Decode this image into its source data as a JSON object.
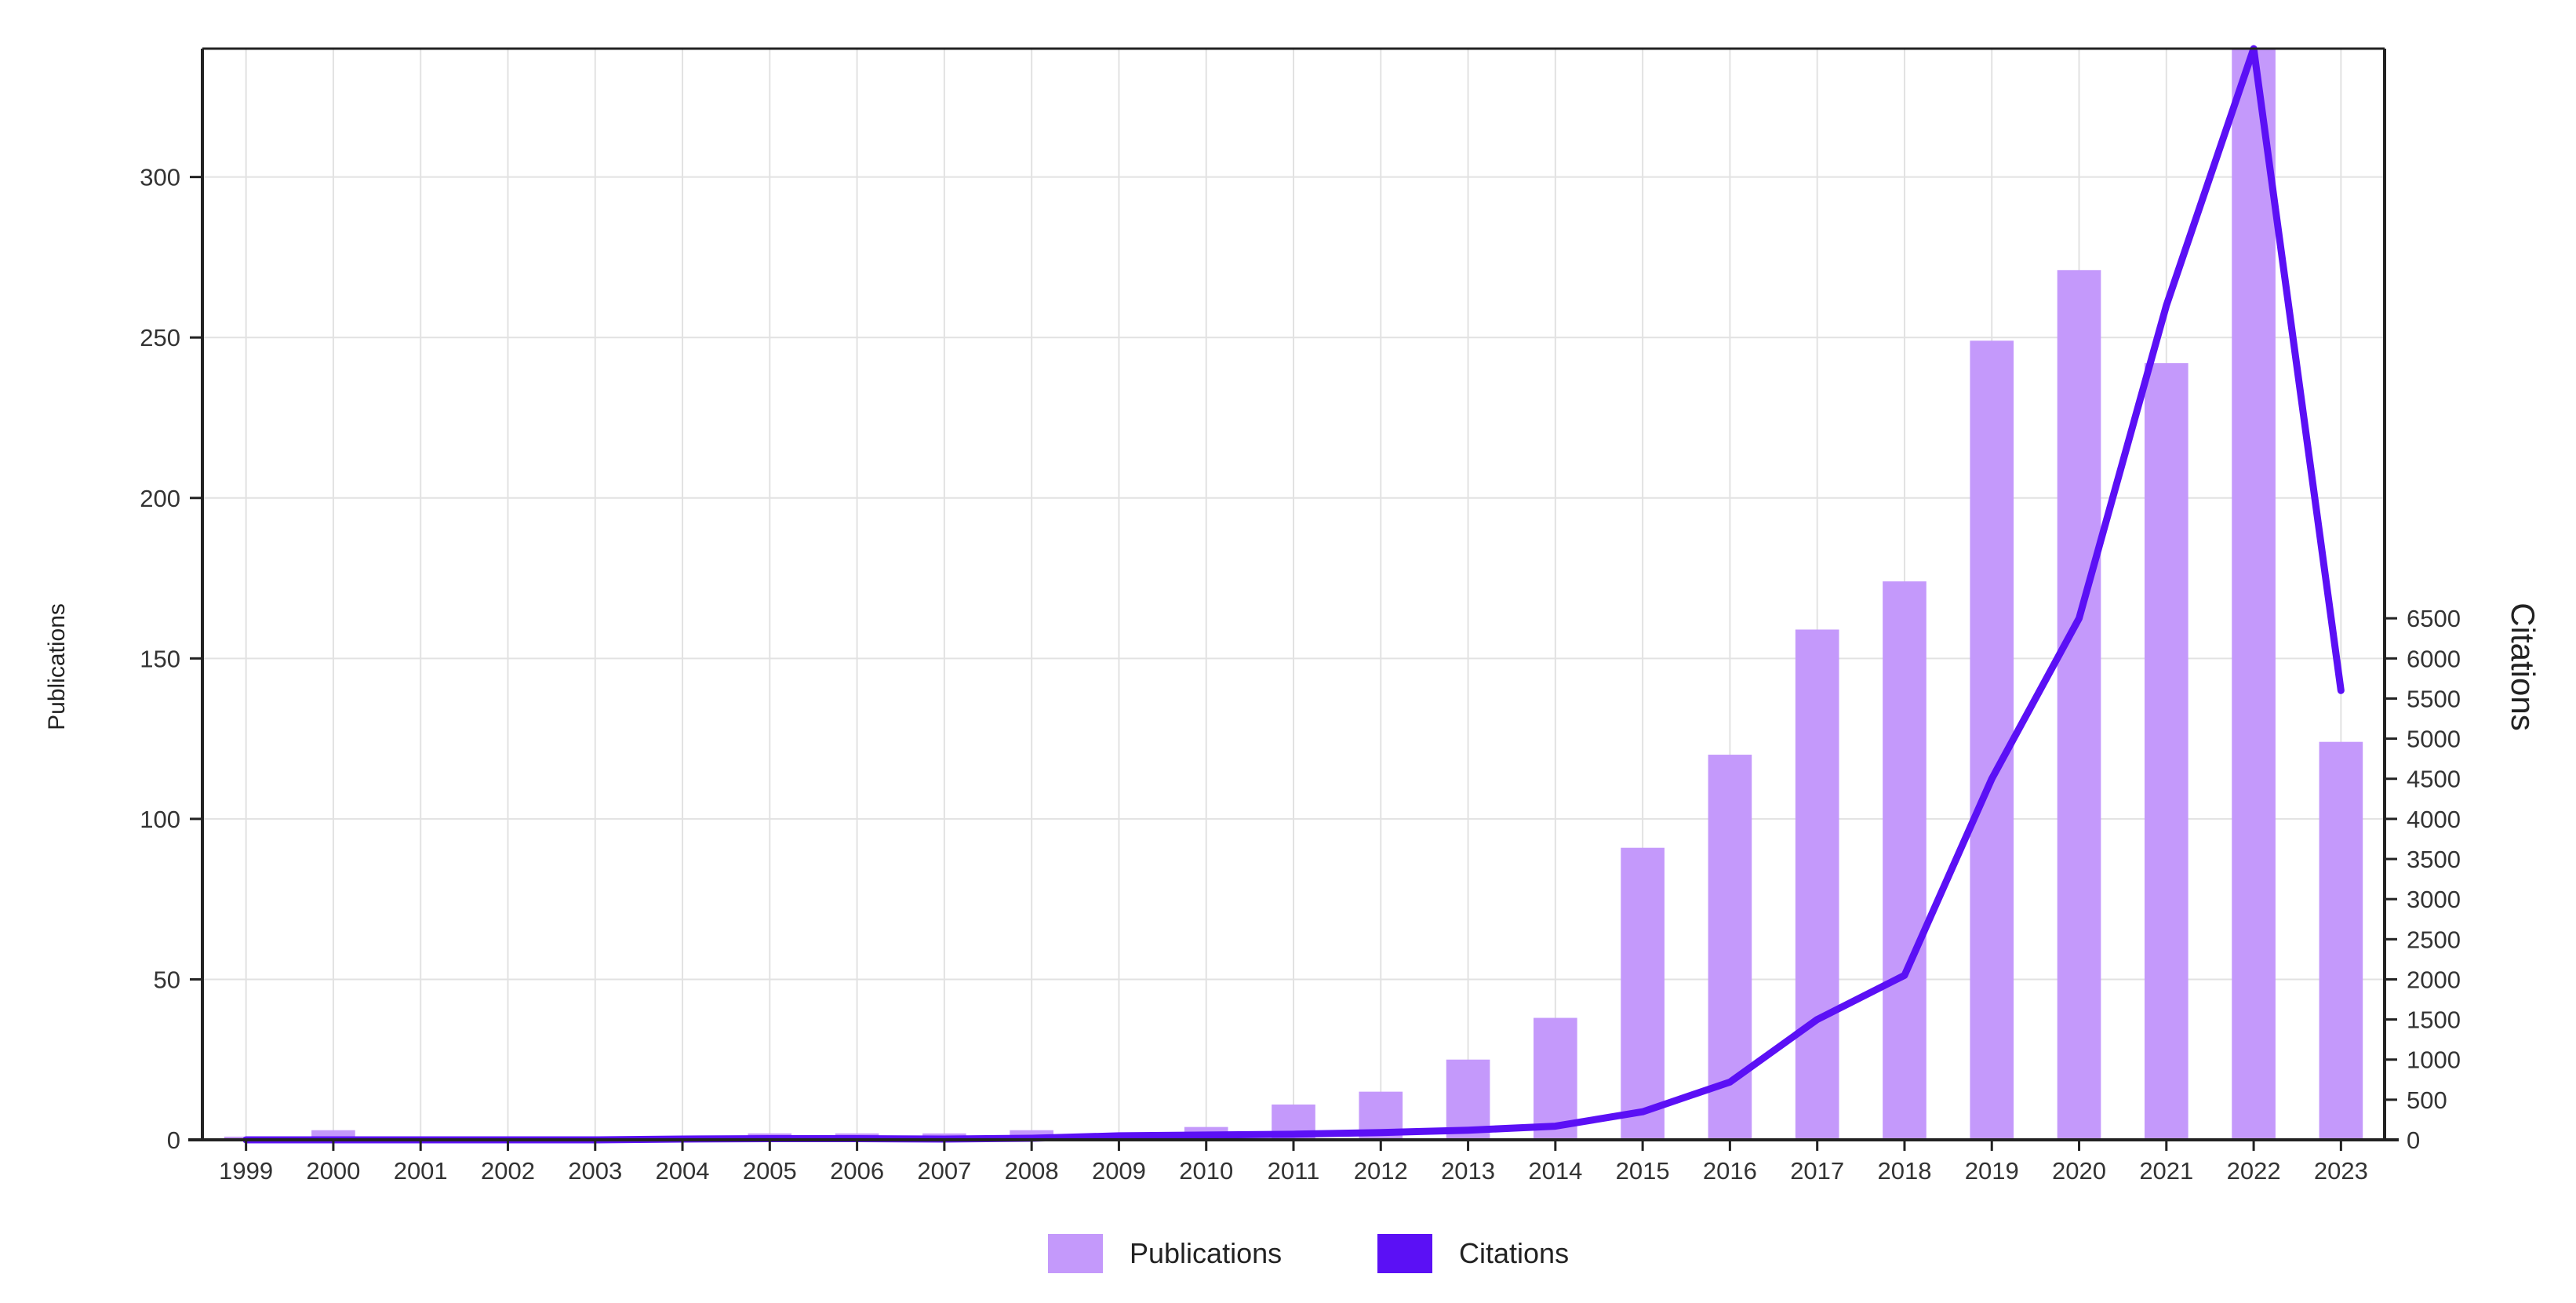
{
  "chart_data": {
    "type": "bar",
    "categories": [
      "1999",
      "2000",
      "2001",
      "2002",
      "2003",
      "2004",
      "2005",
      "2006",
      "2007",
      "2008",
      "2009",
      "2010",
      "2011",
      "2012",
      "2013",
      "2014",
      "2015",
      "2016",
      "2017",
      "2018",
      "2019",
      "2020",
      "2021",
      "2022",
      "2023"
    ],
    "series": [
      {
        "name": "Publications",
        "type": "bar",
        "axis": "left",
        "color": "#c499fb",
        "values": [
          1,
          3,
          1,
          1,
          1,
          1,
          2,
          2,
          2,
          3,
          2,
          4,
          11,
          15,
          25,
          38,
          91,
          120,
          159,
          174,
          249,
          271,
          242,
          340,
          124
        ]
      },
      {
        "name": "Citations",
        "type": "line",
        "axis": "right",
        "color": "#5b10f5",
        "values": [
          0,
          0,
          0,
          0,
          0,
          10,
          15,
          15,
          10,
          20,
          50,
          60,
          70,
          90,
          120,
          170,
          350,
          720,
          1500,
          2050,
          4500,
          6500,
          10400,
          13600,
          5600
        ]
      }
    ],
    "yaxis_left": {
      "label": "Publications",
      "range": [
        0,
        340
      ],
      "ticks": [
        0,
        50,
        100,
        150,
        200,
        250,
        300
      ]
    },
    "yaxis_right": {
      "label": "Citations",
      "range": [
        0,
        13600
      ],
      "ticks": [
        0,
        500,
        1000,
        1500,
        2000,
        2500,
        3000,
        3500,
        4000,
        4500,
        5000,
        5500,
        6000,
        6500
      ]
    },
    "grid": true,
    "legend": {
      "placement": "bottom-center",
      "items": [
        "Publications",
        "Citations"
      ]
    }
  }
}
